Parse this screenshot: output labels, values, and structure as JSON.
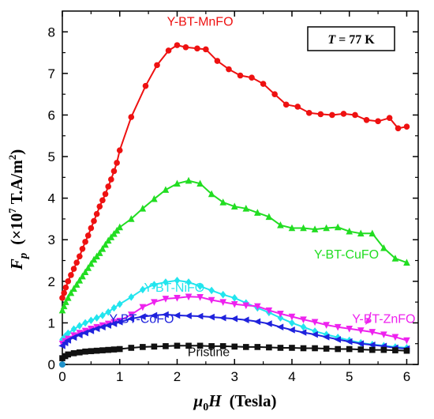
{
  "chart_data": {
    "type": "line",
    "xlim": [
      0,
      6.2
    ],
    "ylim": [
      0,
      8.5
    ],
    "x_ticks": [
      "0",
      "1",
      "2",
      "3",
      "4",
      "5",
      "6"
    ],
    "y_ticks": [
      "0",
      "1",
      "2",
      "3",
      "4",
      "5",
      "6",
      "7",
      "8"
    ],
    "ylabel": {
      "main": "F",
      "sub": "p",
      "unit_pre": "(×10",
      "unit_sup": "7",
      "unit_mid": " T.A/m",
      "unit_sup2": "2",
      "unit_post": ")"
    },
    "xlabel": {
      "mu": "μ",
      "sub": "0",
      "main": "H",
      "unit": "(Tesla)"
    },
    "annotation": {
      "var": "T",
      "rest": " = 77 K"
    },
    "series": [
      {
        "name": "Y-BT-MnFO",
        "color": "#ee1111",
        "marker": "circle",
        "label_pos": [
          2.4,
          8.15
        ],
        "x": [
          0,
          0.03,
          0.06,
          0.1,
          0.15,
          0.2,
          0.25,
          0.3,
          0.35,
          0.4,
          0.45,
          0.5,
          0.55,
          0.6,
          0.65,
          0.7,
          0.75,
          0.8,
          0.85,
          0.9,
          0.95,
          1.0,
          1.2,
          1.45,
          1.65,
          1.85,
          2.0,
          2.15,
          2.35,
          2.5,
          2.7,
          2.9,
          3.1,
          3.3,
          3.5,
          3.7,
          3.9,
          4.1,
          4.3,
          4.5,
          4.7,
          4.9,
          5.1,
          5.3,
          5.5,
          5.7,
          5.85,
          6.0
        ],
        "y": [
          1.6,
          1.72,
          1.85,
          2.0,
          2.15,
          2.3,
          2.45,
          2.6,
          2.78,
          2.95,
          3.1,
          3.28,
          3.45,
          3.62,
          3.8,
          3.95,
          4.1,
          4.28,
          4.45,
          4.65,
          4.85,
          5.15,
          5.95,
          6.7,
          7.2,
          7.55,
          7.68,
          7.63,
          7.6,
          7.58,
          7.3,
          7.1,
          6.95,
          6.9,
          6.75,
          6.5,
          6.25,
          6.2,
          6.05,
          6.02,
          6.0,
          6.03,
          6.0,
          5.88,
          5.85,
          5.93,
          5.68,
          5.72
        ]
      },
      {
        "name": "Y-BT-CuFO",
        "color": "#22dd22",
        "marker": "triangle-up",
        "label_pos": [
          4.95,
          2.55
        ],
        "x": [
          0,
          0.03,
          0.06,
          0.1,
          0.15,
          0.2,
          0.25,
          0.3,
          0.35,
          0.4,
          0.45,
          0.5,
          0.55,
          0.6,
          0.65,
          0.7,
          0.75,
          0.8,
          0.85,
          0.9,
          0.95,
          1.0,
          1.2,
          1.4,
          1.6,
          1.8,
          2.0,
          2.2,
          2.4,
          2.6,
          2.8,
          3.0,
          3.2,
          3.4,
          3.6,
          3.8,
          4.0,
          4.2,
          4.4,
          4.6,
          4.8,
          5.0,
          5.2,
          5.4,
          5.6,
          5.8,
          6.0
        ],
        "y": [
          1.3,
          1.4,
          1.5,
          1.6,
          1.72,
          1.82,
          1.92,
          2.02,
          2.12,
          2.22,
          2.32,
          2.42,
          2.52,
          2.6,
          2.68,
          2.78,
          2.88,
          2.98,
          3.06,
          3.14,
          3.22,
          3.3,
          3.5,
          3.75,
          3.98,
          4.2,
          4.35,
          4.42,
          4.35,
          4.1,
          3.9,
          3.8,
          3.75,
          3.65,
          3.55,
          3.35,
          3.28,
          3.28,
          3.25,
          3.28,
          3.3,
          3.2,
          3.15,
          3.15,
          2.8,
          2.55,
          2.45
        ]
      },
      {
        "name": "Y-BT-NiFO",
        "color": "#22e5ee",
        "marker": "diamond",
        "label_pos": [
          1.95,
          1.75
        ],
        "x": [
          0,
          0.05,
          0.1,
          0.2,
          0.3,
          0.4,
          0.5,
          0.6,
          0.7,
          0.8,
          0.9,
          1.0,
          1.2,
          1.4,
          1.6,
          1.8,
          2.0,
          2.2,
          2.4,
          2.6,
          2.8,
          3.0,
          3.2,
          3.4,
          3.6,
          3.8,
          4.0,
          4.2,
          4.4,
          4.6,
          4.8,
          5.0,
          5.2,
          5.4,
          5.6,
          5.8,
          6.0
        ],
        "y": [
          0.6,
          0.68,
          0.75,
          0.85,
          0.93,
          1.0,
          1.06,
          1.12,
          1.18,
          1.26,
          1.36,
          1.45,
          1.62,
          1.8,
          1.92,
          1.98,
          2.02,
          1.98,
          1.88,
          1.78,
          1.68,
          1.6,
          1.48,
          1.36,
          1.25,
          1.12,
          1.0,
          0.9,
          0.8,
          0.72,
          0.65,
          0.58,
          0.52,
          0.48,
          0.45,
          0.42,
          0.4
        ]
      },
      {
        "name": "Y-BT-ZnFO",
        "color": "#ee22ee",
        "marker": "triangle-down",
        "label_pos": [
          5.6,
          1.0
        ],
        "x": [
          0,
          0.05,
          0.1,
          0.2,
          0.3,
          0.4,
          0.5,
          0.6,
          0.7,
          0.8,
          0.9,
          1.0,
          1.2,
          1.4,
          1.6,
          1.8,
          2.0,
          2.2,
          2.4,
          2.6,
          2.8,
          3.0,
          3.2,
          3.4,
          3.6,
          3.8,
          4.0,
          4.2,
          4.4,
          4.6,
          4.8,
          5.0,
          5.2,
          5.4,
          5.6,
          5.8,
          6.0
        ],
        "y": [
          0.5,
          0.56,
          0.62,
          0.7,
          0.76,
          0.81,
          0.86,
          0.9,
          0.94,
          0.98,
          1.02,
          1.05,
          1.2,
          1.38,
          1.5,
          1.58,
          1.6,
          1.63,
          1.62,
          1.55,
          1.5,
          1.45,
          1.42,
          1.4,
          1.3,
          1.22,
          1.15,
          1.08,
          1.02,
          0.95,
          0.9,
          0.86,
          0.82,
          0.78,
          0.72,
          0.66,
          0.58
        ]
      },
      {
        "name": "Y-BT-CoFO",
        "color": "#1f22dd",
        "marker": "triangle-left",
        "label_pos": [
          1.38,
          1.0
        ],
        "x": [
          0,
          0.05,
          0.1,
          0.2,
          0.3,
          0.4,
          0.5,
          0.6,
          0.7,
          0.8,
          0.9,
          1.0,
          1.2,
          1.4,
          1.6,
          1.8,
          2.0,
          2.2,
          2.4,
          2.6,
          2.8,
          3.0,
          3.2,
          3.4,
          3.6,
          3.8,
          4.0,
          4.2,
          4.4,
          4.6,
          4.8,
          5.0,
          5.2,
          5.4,
          5.6,
          5.8,
          6.0
        ],
        "y": [
          0.45,
          0.52,
          0.58,
          0.65,
          0.71,
          0.76,
          0.81,
          0.86,
          0.9,
          0.94,
          0.98,
          1.02,
          1.1,
          1.15,
          1.18,
          1.2,
          1.18,
          1.17,
          1.16,
          1.14,
          1.12,
          1.1,
          1.07,
          1.03,
          0.98,
          0.9,
          0.83,
          0.77,
          0.72,
          0.66,
          0.6,
          0.55,
          0.5,
          0.47,
          0.44,
          0.4,
          0.38
        ]
      },
      {
        "name": "Pristine",
        "color": "#111111",
        "marker": "square",
        "label_pos": [
          2.55,
          0.2
        ],
        "x": [
          0,
          0.05,
          0.1,
          0.2,
          0.3,
          0.4,
          0.5,
          0.6,
          0.7,
          0.8,
          0.9,
          1.0,
          1.2,
          1.4,
          1.6,
          1.8,
          2.0,
          2.2,
          2.4,
          2.6,
          2.8,
          3.0,
          3.2,
          3.4,
          3.6,
          3.8,
          4.0,
          4.2,
          4.4,
          4.6,
          4.8,
          5.0,
          5.2,
          5.4,
          5.6,
          5.8,
          6.0
        ],
        "y": [
          0.15,
          0.2,
          0.24,
          0.27,
          0.29,
          0.31,
          0.32,
          0.33,
          0.34,
          0.35,
          0.36,
          0.37,
          0.4,
          0.42,
          0.43,
          0.44,
          0.45,
          0.45,
          0.45,
          0.44,
          0.44,
          0.43,
          0.42,
          0.42,
          0.41,
          0.4,
          0.4,
          0.39,
          0.39,
          0.38,
          0.37,
          0.37,
          0.36,
          0.35,
          0.35,
          0.34,
          0.33
        ]
      }
    ]
  }
}
